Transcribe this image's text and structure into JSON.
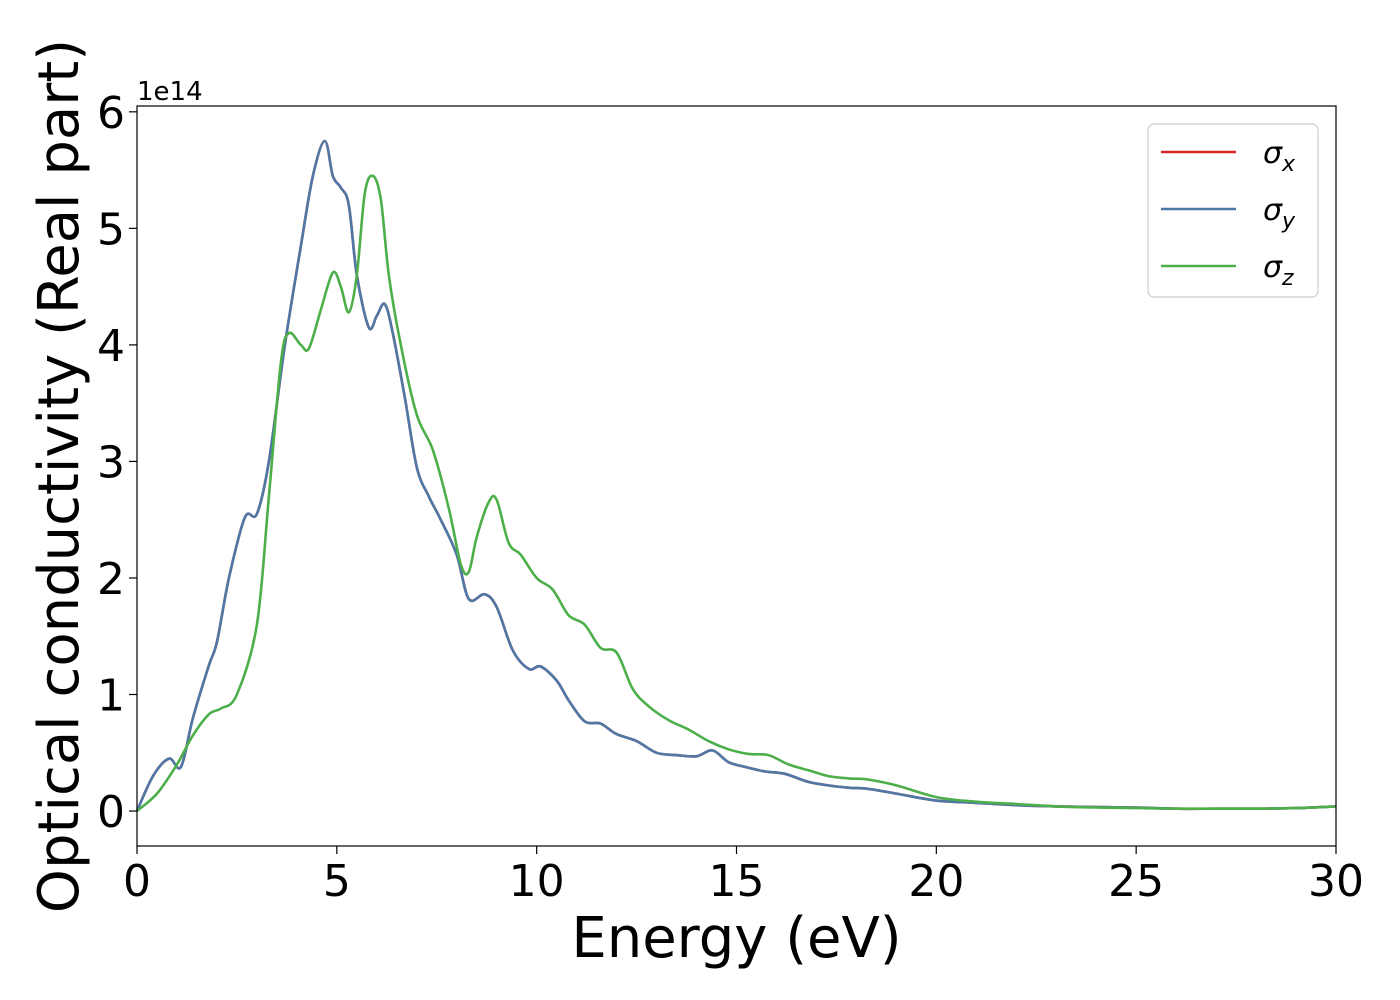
{
  "chart_data": {
    "type": "line",
    "title": "",
    "xlabel": "Energy (eV)",
    "ylabel": "Optical conductivity (Real part)",
    "y_offset_label": "1e14",
    "xlim": [
      0,
      30
    ],
    "ylim": [
      -0.3,
      6.05
    ],
    "x_ticks": [
      "0",
      "5",
      "10",
      "15",
      "20",
      "25",
      "30"
    ],
    "y_ticks": [
      "0",
      "1",
      "2",
      "3",
      "4",
      "5",
      "6"
    ],
    "grid": false,
    "legend_position": "top-right",
    "series": [
      {
        "name": "σx",
        "label_symbol": "σ",
        "label_sub": "x",
        "color": "#d62728",
        "x": [
          0,
          0.4,
          0.8,
          1.1,
          1.4,
          1.8,
          2.0,
          2.3,
          2.7,
          3.0,
          3.3,
          3.7,
          4.1,
          4.4,
          4.7,
          4.9,
          5.1,
          5.3,
          5.5,
          5.8,
          6.0,
          6.2,
          6.4,
          6.7,
          7.0,
          7.3,
          7.6,
          8.0,
          8.3,
          8.7,
          9.0,
          9.4,
          9.8,
          10.1,
          10.5,
          10.8,
          11.2,
          11.6,
          12.0,
          12.5,
          13.0,
          13.5,
          14.0,
          14.4,
          14.8,
          15.2,
          15.7,
          16.2,
          16.8,
          17.3,
          17.8,
          18.3,
          19.0,
          20.0,
          21.0,
          22.0,
          23.0,
          24.0,
          25.0,
          26.0,
          27.0,
          28.0,
          29.0,
          30.0
        ],
        "y": [
          0,
          0.3,
          0.45,
          0.38,
          0.8,
          1.25,
          1.45,
          2.0,
          2.52,
          2.55,
          3.0,
          4.0,
          4.85,
          5.45,
          5.75,
          5.45,
          5.35,
          5.2,
          4.6,
          4.15,
          4.25,
          4.35,
          4.1,
          3.55,
          2.95,
          2.7,
          2.5,
          2.2,
          1.82,
          1.86,
          1.75,
          1.38,
          1.22,
          1.24,
          1.12,
          0.95,
          0.77,
          0.75,
          0.66,
          0.6,
          0.5,
          0.48,
          0.47,
          0.52,
          0.42,
          0.38,
          0.34,
          0.32,
          0.25,
          0.22,
          0.2,
          0.19,
          0.15,
          0.09,
          0.07,
          0.05,
          0.04,
          0.035,
          0.03,
          0.02,
          0.02,
          0.02,
          0.025,
          0.04
        ]
      },
      {
        "name": "σy",
        "label_symbol": "σ",
        "label_sub": "y",
        "color": "#4e79a7",
        "x": [
          0,
          0.4,
          0.8,
          1.1,
          1.4,
          1.8,
          2.0,
          2.3,
          2.7,
          3.0,
          3.3,
          3.7,
          4.1,
          4.4,
          4.7,
          4.9,
          5.1,
          5.3,
          5.5,
          5.8,
          6.0,
          6.2,
          6.4,
          6.7,
          7.0,
          7.3,
          7.6,
          8.0,
          8.3,
          8.7,
          9.0,
          9.4,
          9.8,
          10.1,
          10.5,
          10.8,
          11.2,
          11.6,
          12.0,
          12.5,
          13.0,
          13.5,
          14.0,
          14.4,
          14.8,
          15.2,
          15.7,
          16.2,
          16.8,
          17.3,
          17.8,
          18.3,
          19.0,
          20.0,
          21.0,
          22.0,
          23.0,
          24.0,
          25.0,
          26.0,
          27.0,
          28.0,
          29.0,
          30.0
        ],
        "y": [
          0,
          0.3,
          0.45,
          0.38,
          0.8,
          1.25,
          1.45,
          2.0,
          2.52,
          2.55,
          3.0,
          4.0,
          4.85,
          5.45,
          5.75,
          5.45,
          5.35,
          5.2,
          4.6,
          4.15,
          4.25,
          4.35,
          4.1,
          3.55,
          2.95,
          2.7,
          2.5,
          2.2,
          1.82,
          1.86,
          1.75,
          1.38,
          1.22,
          1.24,
          1.12,
          0.95,
          0.77,
          0.75,
          0.66,
          0.6,
          0.5,
          0.48,
          0.47,
          0.52,
          0.42,
          0.38,
          0.34,
          0.32,
          0.25,
          0.22,
          0.2,
          0.19,
          0.15,
          0.09,
          0.07,
          0.05,
          0.04,
          0.035,
          0.03,
          0.02,
          0.02,
          0.02,
          0.025,
          0.04
        ]
      },
      {
        "name": "σz",
        "label_symbol": "σ",
        "label_sub": "z",
        "color": "#4daf4a",
        "x": [
          0,
          0.5,
          1.0,
          1.4,
          1.8,
          2.1,
          2.5,
          3.0,
          3.3,
          3.6,
          3.8,
          4.1,
          4.3,
          4.6,
          4.9,
          5.1,
          5.3,
          5.5,
          5.7,
          5.9,
          6.1,
          6.3,
          6.6,
          7.0,
          7.4,
          7.8,
          8.1,
          8.3,
          8.5,
          8.8,
          9.0,
          9.3,
          9.6,
          10.0,
          10.4,
          10.8,
          11.2,
          11.6,
          12.0,
          12.4,
          12.8,
          13.3,
          13.8,
          14.3,
          14.8,
          15.3,
          15.8,
          16.3,
          16.8,
          17.3,
          17.8,
          18.3,
          19.0,
          20.0,
          21.0,
          22.0,
          23.0,
          24.0,
          25.0,
          26.0,
          27.0,
          28.0,
          29.0,
          30.0
        ],
        "y": [
          0,
          0.15,
          0.4,
          0.65,
          0.83,
          0.88,
          1.0,
          1.6,
          2.7,
          3.85,
          4.1,
          4.0,
          3.97,
          4.3,
          4.62,
          4.5,
          4.28,
          4.6,
          5.3,
          5.45,
          5.25,
          4.6,
          4.0,
          3.4,
          3.1,
          2.6,
          2.12,
          2.05,
          2.35,
          2.65,
          2.67,
          2.3,
          2.2,
          2.0,
          1.9,
          1.68,
          1.6,
          1.4,
          1.36,
          1.05,
          0.9,
          0.78,
          0.7,
          0.6,
          0.53,
          0.49,
          0.48,
          0.4,
          0.35,
          0.3,
          0.28,
          0.27,
          0.22,
          0.12,
          0.08,
          0.06,
          0.04,
          0.03,
          0.025,
          0.02,
          0.02,
          0.02,
          0.025,
          0.04
        ]
      }
    ]
  }
}
